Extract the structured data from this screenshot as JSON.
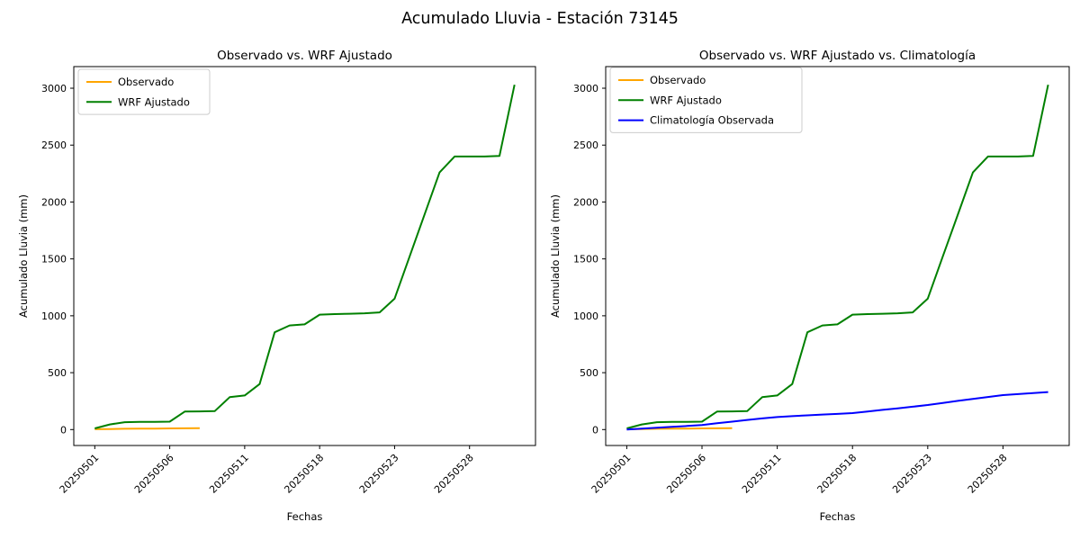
{
  "figure": {
    "title": "Acumulado Lluvia - Estación 73145",
    "background": "#ffffff"
  },
  "colors": {
    "observado": "#FFA500",
    "wrf_ajustado": "#008000",
    "climatologia": "#0000FF",
    "axis": "#000000",
    "legend_border": "#cccccc"
  },
  "chart_data": [
    {
      "type": "line",
      "title": "Observado vs. WRF Ajustado",
      "xlabel": "Fechas",
      "ylabel": "Acumulado Lluvia (mm)",
      "grid": false,
      "legend_position": "upper left",
      "yticks": [
        0,
        500,
        1000,
        1500,
        2000,
        2500,
        3000
      ],
      "xtick_positions": [
        0,
        5,
        10,
        15,
        20,
        25
      ],
      "xtick_labels": [
        "20250501",
        "20250506",
        "20250511",
        "20250518",
        "20250523",
        "20250528"
      ],
      "xlim": [
        -1.4,
        29.4
      ],
      "ylim": [
        -140,
        3190
      ],
      "series": [
        {
          "name": "Observado",
          "color": "#FFA500",
          "x": [
            0,
            1,
            2,
            3,
            4,
            5,
            6,
            7
          ],
          "values": [
            3,
            5,
            7,
            8,
            9,
            10,
            11,
            12
          ]
        },
        {
          "name": "WRF Ajustado",
          "color": "#008000",
          "x": [
            0,
            1,
            2,
            3,
            4,
            5,
            6,
            7,
            8,
            9,
            10,
            11,
            12,
            13,
            14,
            15,
            16,
            17,
            18,
            19,
            20,
            21,
            22,
            23,
            24,
            25,
            26,
            27,
            28
          ],
          "values": [
            10,
            45,
            65,
            68,
            68,
            70,
            158,
            160,
            162,
            285,
            300,
            400,
            855,
            915,
            925,
            1010,
            1015,
            1018,
            1022,
            1030,
            1150,
            1520,
            1890,
            2260,
            2400,
            2400,
            2400,
            2405,
            3030
          ]
        }
      ]
    },
    {
      "type": "line",
      "title": "Observado vs. WRF Ajustado vs. Climatología",
      "xlabel": "Fechas",
      "ylabel": "Acumulado Lluvia (mm)",
      "grid": false,
      "legend_position": "upper left",
      "yticks": [
        0,
        500,
        1000,
        1500,
        2000,
        2500,
        3000
      ],
      "xtick_positions": [
        0,
        5,
        10,
        15,
        20,
        25
      ],
      "xtick_labels": [
        "20250501",
        "20250506",
        "20250511",
        "20250518",
        "20250523",
        "20250528"
      ],
      "xlim": [
        -1.4,
        29.4
      ],
      "ylim": [
        -140,
        3190
      ],
      "series": [
        {
          "name": "Observado",
          "color": "#FFA500",
          "x": [
            0,
            1,
            2,
            3,
            4,
            5,
            6,
            7
          ],
          "values": [
            3,
            5,
            7,
            8,
            9,
            10,
            11,
            12
          ]
        },
        {
          "name": "WRF Ajustado",
          "color": "#008000",
          "x": [
            0,
            1,
            2,
            3,
            4,
            5,
            6,
            7,
            8,
            9,
            10,
            11,
            12,
            13,
            14,
            15,
            16,
            17,
            18,
            19,
            20,
            21,
            22,
            23,
            24,
            25,
            26,
            27,
            28
          ],
          "values": [
            10,
            45,
            65,
            68,
            68,
            70,
            158,
            160,
            162,
            285,
            300,
            400,
            855,
            915,
            925,
            1010,
            1015,
            1018,
            1022,
            1030,
            1150,
            1520,
            1890,
            2260,
            2400,
            2400,
            2400,
            2405,
            3030
          ]
        },
        {
          "name": "Climatología Observada",
          "color": "#0000FF",
          "x": [
            0,
            1,
            2,
            3,
            4,
            5,
            6,
            7,
            8,
            9,
            10,
            11,
            12,
            13,
            14,
            15,
            16,
            17,
            18,
            19,
            20,
            21,
            22,
            23,
            24,
            25,
            26,
            27,
            28
          ],
          "values": [
            0,
            8,
            16,
            24,
            32,
            40,
            55,
            70,
            85,
            98,
            110,
            118,
            125,
            132,
            138,
            145,
            159,
            173,
            187,
            201,
            216,
            234,
            252,
            269,
            286,
            303,
            312,
            320,
            330
          ]
        }
      ]
    }
  ]
}
